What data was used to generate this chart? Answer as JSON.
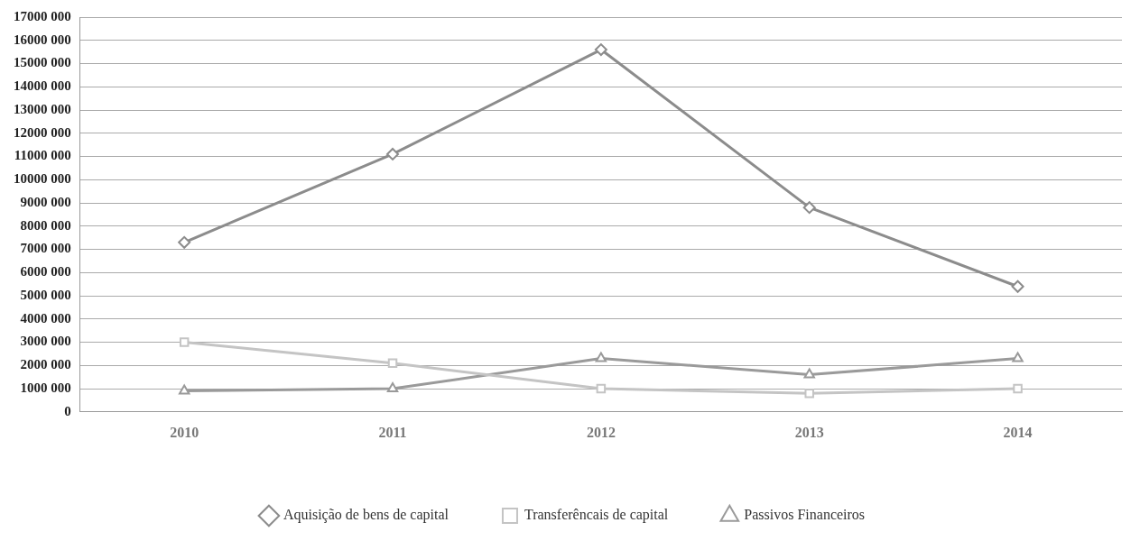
{
  "chart_data": {
    "type": "line",
    "categories": [
      "2010",
      "2011",
      "2012",
      "2013",
      "2014"
    ],
    "series": [
      {
        "name": "Aquisição de bens de capital",
        "color": "#8c8c8c",
        "marker": "diamond",
        "values": [
          7300000,
          11100000,
          15600000,
          8800000,
          5400000
        ]
      },
      {
        "name": "Transferêncais de capital",
        "color": "#c4c4c4",
        "marker": "square",
        "values": [
          3000000,
          2100000,
          1000000,
          800000,
          1000000
        ]
      },
      {
        "name": "Passivos Financeiros",
        "color": "#9a9a9a",
        "marker": "triangle",
        "values": [
          900000,
          1000000,
          2300000,
          1600000,
          2300000
        ]
      }
    ],
    "ylim": [
      0,
      17000000
    ],
    "yticks": [
      {
        "value": 0,
        "label": "0"
      },
      {
        "value": 1000000,
        "label": "1000 000"
      },
      {
        "value": 2000000,
        "label": "2000 000"
      },
      {
        "value": 3000000,
        "label": "3000 000"
      },
      {
        "value": 4000000,
        "label": "4000 000"
      },
      {
        "value": 5000000,
        "label": "5000 000"
      },
      {
        "value": 6000000,
        "label": "6000 000"
      },
      {
        "value": 7000000,
        "label": "7000 000"
      },
      {
        "value": 8000000,
        "label": "8000 000"
      },
      {
        "value": 9000000,
        "label": "9000 000"
      },
      {
        "value": 10000000,
        "label": "10000 000"
      },
      {
        "value": 11000000,
        "label": "11000 000"
      },
      {
        "value": 12000000,
        "label": "12000 000"
      },
      {
        "value": 13000000,
        "label": "13000 000"
      },
      {
        "value": 14000000,
        "label": "14000 000"
      },
      {
        "value": 15000000,
        "label": "15000 000"
      },
      {
        "value": 16000000,
        "label": "16000 000"
      },
      {
        "value": 17000000,
        "label": "17000 000"
      }
    ],
    "grid": "y",
    "legend": "bottom"
  }
}
